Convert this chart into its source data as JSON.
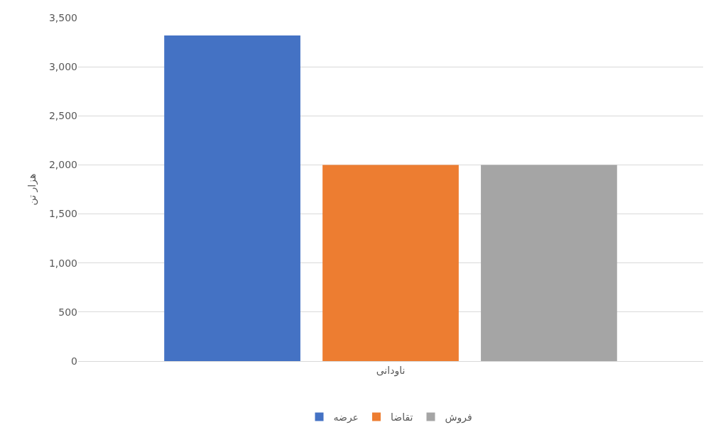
{
  "chart_data": {
    "type": "bar",
    "ylabel": "هزار تن",
    "categories": [
      "ناودانی"
    ],
    "series": [
      {
        "name": "عرضه",
        "color": "#4472c4",
        "values": [
          3320
        ]
      },
      {
        "name": "تقاضا",
        "color": "#ed7d31",
        "values": [
          2000
        ]
      },
      {
        "name": "فروش",
        "color": "#a5a5a5",
        "values": [
          2000
        ]
      }
    ],
    "ylim": [
      0,
      3500
    ],
    "yticks": [
      0,
      500,
      {
        "value": 1000,
        "label": "1,000"
      },
      {
        "value": 1500,
        "label": "1,500"
      },
      {
        "value": 2000,
        "label": "2,000"
      },
      {
        "value": 2500,
        "label": "2,500"
      },
      {
        "value": 3000,
        "label": "3,000"
      },
      {
        "value": 3500,
        "label": "3,500"
      }
    ],
    "grid": "y",
    "legend": "bottom"
  }
}
